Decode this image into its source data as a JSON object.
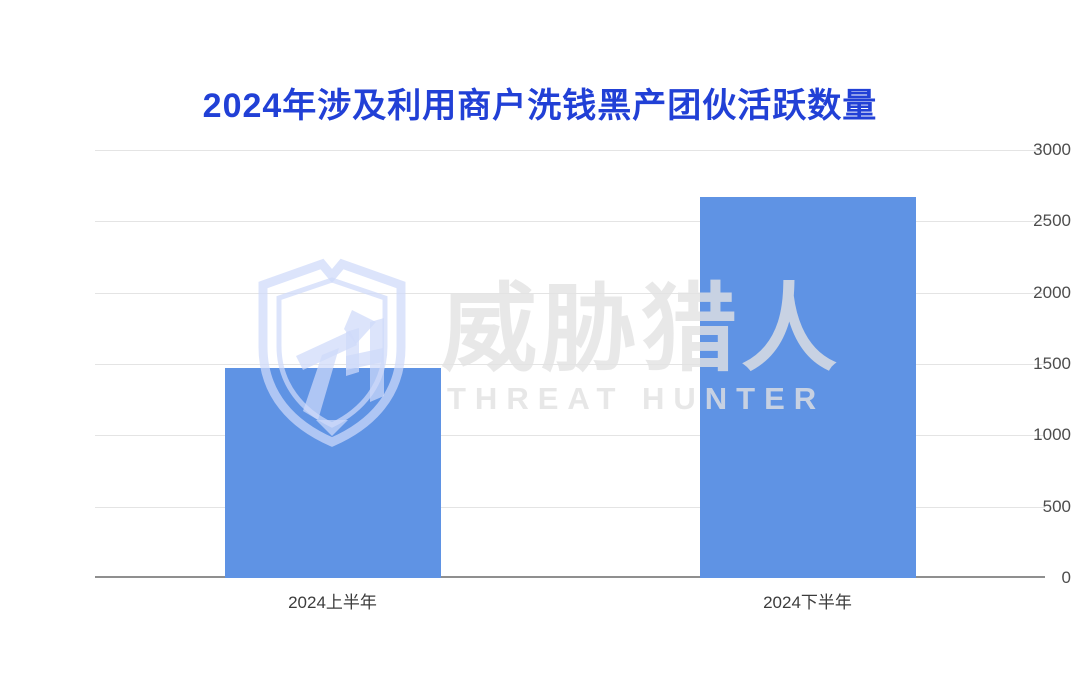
{
  "title": {
    "text": "2024年涉及利用商户洗钱黑产团伙活跃数量",
    "color": "#2140d6"
  },
  "watermark": {
    "logo_icon": "threat-hunter-shield-logo",
    "cn_text": "威胁猎人",
    "en_text": "THREAT HUNTER"
  },
  "chart_data": {
    "type": "bar",
    "title": "2024年涉及利用商户洗钱黑产团伙活跃数量",
    "categories": [
      "2024上半年",
      "2024下半年"
    ],
    "values": [
      1470,
      2670
    ],
    "xlabel": "",
    "ylabel": "",
    "ylim": [
      0,
      3000
    ],
    "yticks": [
      0,
      500,
      1000,
      1500,
      2000,
      2500,
      3000
    ],
    "grid": true,
    "legend": false,
    "bar_color": "#5f93e4",
    "colors": {
      "title": "#2140d6",
      "bar": "#5f93e4",
      "grid_line": "#e4e4e4",
      "axis_line": "#8f8f8f",
      "tick_label": "#4d4d4d",
      "category_label": "#3c3c3c"
    }
  }
}
